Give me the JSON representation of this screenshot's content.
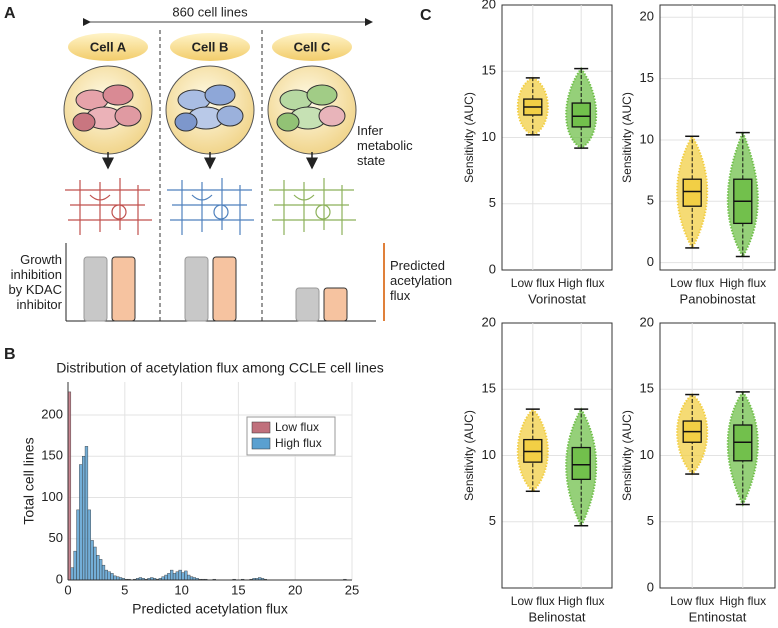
{
  "panel_labels": [
    "A",
    "B",
    "C"
  ],
  "diagram": {
    "span_label": "860 cell lines",
    "cells": [
      "Cell A",
      "Cell B",
      "Cell C"
    ],
    "step_label": "Infer metabolic state",
    "left_label": "Growth inhibition by KDAC inhibitor",
    "right_label": "Predicted acetylation flux"
  },
  "chart_data": [
    {
      "type": "histogram",
      "title": "Distribution of acetylation flux among CCLE cell lines",
      "xlabel": "Predicted acetylation flux",
      "ylabel": "Total cell lines",
      "bins": [
        0,
        0.25,
        0.5,
        0.75,
        1,
        1.25,
        1.5,
        1.75,
        2,
        2.25,
        2.5,
        2.75,
        3,
        3.25,
        3.5,
        3.75,
        4,
        4.25,
        4.5,
        4.75,
        5,
        5.25,
        5.5,
        5.75,
        6,
        6.25,
        6.5,
        6.75,
        7,
        7.25,
        7.5,
        7.75,
        8,
        8.25,
        8.5,
        8.75,
        9,
        9.25,
        9.5,
        9.75,
        10,
        10.25,
        10.5,
        10.75,
        11,
        11.25,
        11.5,
        11.75,
        12,
        12.25,
        12.5,
        12.75,
        13,
        13.25,
        13.5,
        13.75,
        14,
        14.25,
        14.5,
        14.75,
        15,
        15.25,
        15.5,
        15.75,
        16,
        16.25,
        16.5,
        16.75,
        17,
        17.25,
        17.5,
        17.75,
        18,
        18.25,
        18.5,
        18.75,
        19,
        19.25,
        19.5,
        19.75,
        20,
        20.25,
        20.5,
        20.75,
        21,
        21.25,
        21.5,
        21.75,
        22,
        22.25,
        22.5,
        22.75,
        23,
        23.25,
        23.5,
        23.75,
        24,
        24.25,
        24.5,
        24.75,
        25
      ],
      "series": [
        {
          "name": "Low flux",
          "color": "#c0707c",
          "values": [
            228,
            0,
            0,
            0,
            0,
            0,
            0,
            0,
            0,
            0,
            0,
            0,
            0,
            0,
            0,
            0,
            0,
            0,
            0,
            0,
            0,
            0,
            0,
            0,
            0,
            0,
            0,
            0,
            0,
            0,
            0,
            0,
            0,
            0,
            0,
            0,
            0,
            0,
            0,
            0,
            0,
            0,
            0,
            0,
            0,
            0,
            0,
            0,
            0,
            0,
            0,
            0,
            0,
            0,
            0,
            0,
            0,
            0,
            0,
            0,
            0,
            0,
            0,
            0,
            0,
            0,
            0,
            0,
            0,
            0,
            0,
            0,
            0,
            0,
            0,
            0,
            0,
            0,
            0,
            0,
            0,
            0,
            0,
            0,
            0,
            0,
            0,
            0,
            0,
            0,
            0,
            0,
            0,
            0,
            0,
            0,
            0,
            0,
            0,
            0
          ]
        },
        {
          "name": "High flux",
          "color": "#5aa0d0",
          "values": [
            0,
            15,
            35,
            85,
            140,
            150,
            162,
            85,
            48,
            40,
            30,
            25,
            18,
            12,
            10,
            8,
            5,
            4,
            3,
            2,
            1,
            1,
            0,
            1,
            2,
            3,
            2,
            1,
            2,
            3,
            2,
            1,
            2,
            4,
            6,
            8,
            12,
            8,
            10,
            12,
            9,
            11,
            6,
            4,
            3,
            2,
            1,
            1,
            1,
            0,
            0,
            1,
            0,
            0,
            0,
            0,
            0,
            0,
            1,
            0,
            0,
            1,
            0,
            0,
            1,
            2,
            2,
            3,
            2,
            1,
            0,
            0,
            0,
            0,
            0,
            0,
            0,
            0,
            0,
            0,
            0,
            0,
            0,
            0,
            0,
            0,
            0,
            0,
            0,
            0,
            0,
            0,
            0,
            0,
            0,
            0,
            0,
            1,
            0,
            0
          ]
        }
      ],
      "xlim": [
        0,
        25
      ],
      "xticks": [
        0,
        5,
        10,
        15,
        20,
        25
      ],
      "ylim": [
        0,
        240
      ],
      "yticks": [
        0,
        50,
        100,
        150,
        200
      ],
      "grid": true,
      "legend": "upper right"
    },
    {
      "type": "box",
      "ylabel": "Sensitivity (AUC)",
      "xlabel": "Vorinostat",
      "categories": [
        "Low flux",
        "High flux"
      ],
      "boxes": [
        {
          "color": "#f2cf45",
          "whisker_low": 10.2,
          "q1": 11.7,
          "median": 12.3,
          "q3": 12.9,
          "whisker_high": 14.5
        },
        {
          "color": "#72c04c",
          "whisker_low": 9.2,
          "q1": 10.8,
          "median": 11.6,
          "q3": 12.6,
          "whisker_high": 15.2
        }
      ],
      "ylim": [
        0,
        20
      ],
      "yticks": [
        0,
        5,
        10,
        15,
        20
      ],
      "grid": true
    },
    {
      "type": "box",
      "ylabel": "Sensitivity (AUC)",
      "xlabel": "Panobinostat",
      "categories": [
        "Low flux",
        "High flux"
      ],
      "boxes": [
        {
          "color": "#f2cf45",
          "whisker_low": 1.2,
          "q1": 4.6,
          "median": 5.8,
          "q3": 6.8,
          "whisker_high": 10.3
        },
        {
          "color": "#72c04c",
          "whisker_low": 0.5,
          "q1": 3.2,
          "median": 5.0,
          "q3": 6.8,
          "whisker_high": 10.6
        }
      ],
      "ylim": [
        -0.6,
        21
      ],
      "yticks": [
        0,
        5,
        10,
        15,
        20
      ],
      "grid": true
    },
    {
      "type": "box",
      "ylabel": "Sensitivity (AUC)",
      "xlabel": "Belinostat",
      "categories": [
        "Low flux",
        "High flux"
      ],
      "boxes": [
        {
          "color": "#f2cf45",
          "whisker_low": 7.3,
          "q1": 9.5,
          "median": 10.3,
          "q3": 11.2,
          "whisker_high": 13.5
        },
        {
          "color": "#72c04c",
          "whisker_low": 4.7,
          "q1": 8.2,
          "median": 9.3,
          "q3": 10.6,
          "whisker_high": 13.5
        }
      ],
      "ylim": [
        0,
        20
      ],
      "yticks": [
        5,
        10,
        15,
        20
      ],
      "grid": true
    },
    {
      "type": "box",
      "ylabel": "Sensitivity (AUC)",
      "xlabel": "Entinostat",
      "categories": [
        "Low flux",
        "High flux"
      ],
      "boxes": [
        {
          "color": "#f2cf45",
          "whisker_low": 8.6,
          "q1": 11.0,
          "median": 11.8,
          "q3": 12.6,
          "whisker_high": 14.6
        },
        {
          "color": "#72c04c",
          "whisker_low": 6.3,
          "q1": 9.6,
          "median": 11.0,
          "q3": 12.3,
          "whisker_high": 14.8
        }
      ],
      "ylim": [
        0,
        20
      ],
      "yticks": [
        0,
        5,
        10,
        15,
        20
      ],
      "grid": true
    }
  ]
}
